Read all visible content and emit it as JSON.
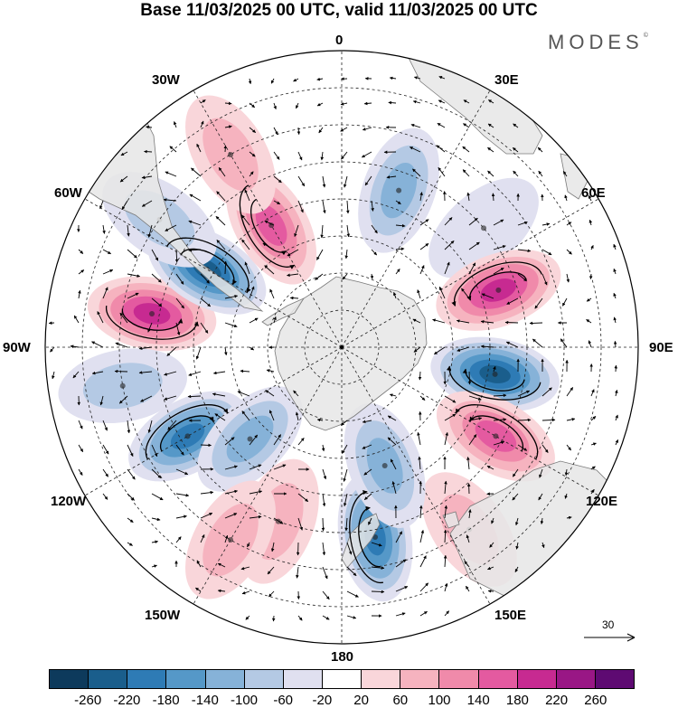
{
  "title": "Base 11/03/2025 00 UTC, valid 11/03/2025 00 UTC",
  "brand": "MODES",
  "brand_mark": "©",
  "longitude_labels": {
    "lon_0": "0",
    "lon_30e": "30E",
    "lon_60e": "60E",
    "lon_90e": "90E",
    "lon_120e": "120E",
    "lon_150e": "150E",
    "lon_180": "180",
    "lon_150w": "150W",
    "lon_120w": "120W",
    "lon_90w": "90W",
    "lon_60w": "60W",
    "lon_30w": "30W"
  },
  "reference_vector": {
    "label": "30"
  },
  "colorbar": {
    "colors": [
      "#0d3a5c",
      "#1a5e8c",
      "#2e7bb5",
      "#5598c8",
      "#86b2d8",
      "#b4c9e4",
      "#e0e0f0",
      "#ffffff",
      "#f9d6da",
      "#f6b3bf",
      "#f08aaa",
      "#e45aa0",
      "#c72a91",
      "#991785",
      "#5e0a72"
    ],
    "ticks": [
      "-260",
      "-220",
      "-180",
      "-140",
      "-100",
      "-60",
      "-20",
      "20",
      "60",
      "100",
      "140",
      "180",
      "220",
      "260"
    ]
  },
  "map": {
    "projection": "south-polar-stereographic",
    "land_color": "#e6e6e6",
    "coastline_color": "#7a7a7a",
    "anomalies": [
      {
        "lon": 280,
        "lat": -38,
        "value": 200
      },
      {
        "lon": 300,
        "lat": -48,
        "value": -240
      },
      {
        "lon": 330,
        "lat": -52,
        "value": 140
      },
      {
        "lon": 330,
        "lat": -30,
        "value": 60
      },
      {
        "lon": 305,
        "lat": -30,
        "value": -60
      },
      {
        "lon": 20,
        "lat": -45,
        "value": -100
      },
      {
        "lon": 50,
        "lat": -40,
        "value": -40
      },
      {
        "lon": 70,
        "lat": -45,
        "value": 180
      },
      {
        "lon": 100,
        "lat": -48,
        "value": -240
      },
      {
        "lon": 120,
        "lat": -42,
        "value": 140
      },
      {
        "lon": 145,
        "lat": -30,
        "value": 60
      },
      {
        "lon": 170,
        "lat": -38,
        "value": -180
      },
      {
        "lon": 160,
        "lat": -56,
        "value": -100
      },
      {
        "lon": 200,
        "lat": -40,
        "value": 60
      },
      {
        "lon": 240,
        "lat": -42,
        "value": -180
      },
      {
        "lon": 225,
        "lat": -55,
        "value": -100
      },
      {
        "lon": 210,
        "lat": -30,
        "value": 60
      },
      {
        "lon": 260,
        "lat": -30,
        "value": -60
      }
    ]
  }
}
